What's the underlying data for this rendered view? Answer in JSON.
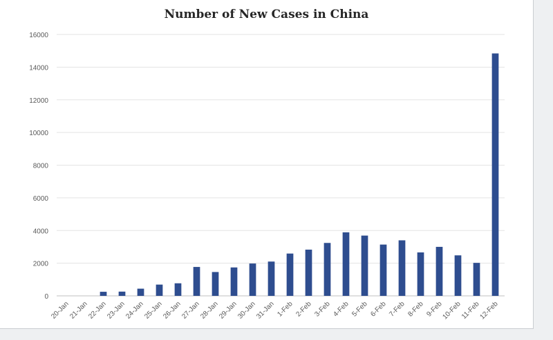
{
  "chart_data": {
    "type": "bar",
    "title": "Number of New Cases in China",
    "xlabel": "",
    "ylabel": "",
    "ylim": [
      0,
      16000
    ],
    "y_ticks": [
      0,
      2000,
      4000,
      6000,
      8000,
      10000,
      12000,
      14000,
      16000
    ],
    "grid": true,
    "legend": "none",
    "bar_color": "#2e4d8f",
    "categories": [
      "20-Jan",
      "21-Jan",
      "22-Jan",
      "23-Jan",
      "24-Jan",
      "25-Jan",
      "26-Jan",
      "27-Jan",
      "28-Jan",
      "29-Jan",
      "30-Jan",
      "31-Jan",
      "1-Feb",
      "2-Feb",
      "3-Feb",
      "4-Feb",
      "5-Feb",
      "6-Feb",
      "7-Feb",
      "8-Feb",
      "9-Feb",
      "10-Feb",
      "11-Feb",
      "12-Feb"
    ],
    "values": [
      0,
      0,
      250,
      260,
      440,
      690,
      770,
      1770,
      1460,
      1740,
      1980,
      2100,
      2590,
      2830,
      3240,
      3890,
      3690,
      3140,
      3400,
      2660,
      3000,
      2480,
      2020,
      14840
    ]
  }
}
